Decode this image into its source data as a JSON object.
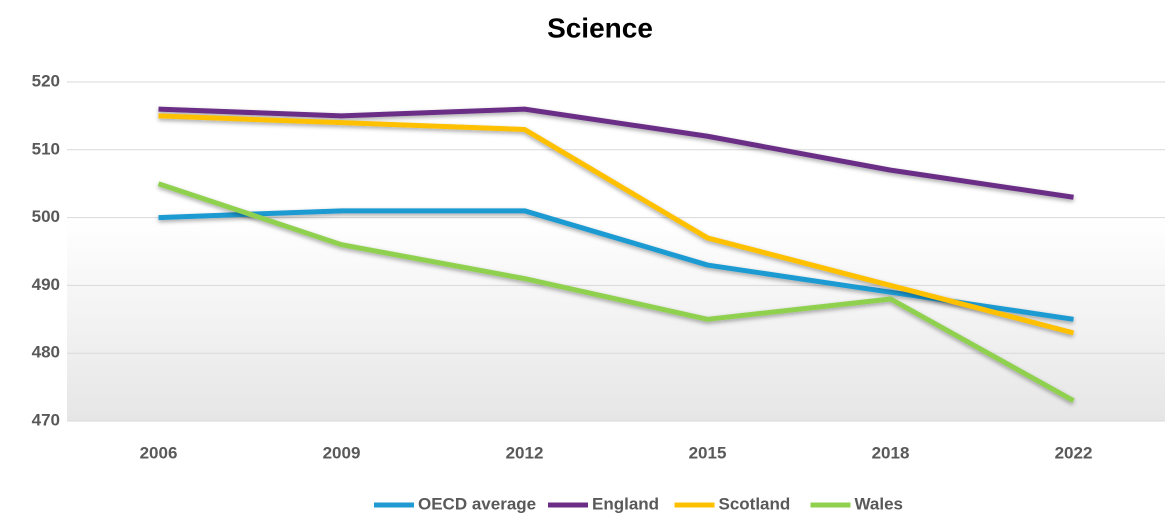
{
  "chart_data": {
    "type": "line",
    "title": "Science",
    "categories": [
      "2006",
      "2009",
      "2012",
      "2015",
      "2018",
      "2022"
    ],
    "series": [
      {
        "name": "OECD average",
        "color": "#1f9ad2",
        "values": [
          500,
          501,
          501,
          493,
          489,
          485
        ]
      },
      {
        "name": "England",
        "color": "#6b2d86",
        "values": [
          516,
          515,
          516,
          512,
          507,
          503
        ]
      },
      {
        "name": "Scotland",
        "color": "#ffc000",
        "values": [
          515,
          514,
          513,
          497,
          490,
          483
        ]
      },
      {
        "name": "Wales",
        "color": "#8fd14f",
        "values": [
          505,
          496,
          491,
          485,
          488,
          473
        ]
      }
    ],
    "ylim": [
      470,
      520
    ],
    "yticks": [
      470,
      480,
      490,
      500,
      510,
      520
    ],
    "grid": true,
    "legend": "bottom"
  }
}
